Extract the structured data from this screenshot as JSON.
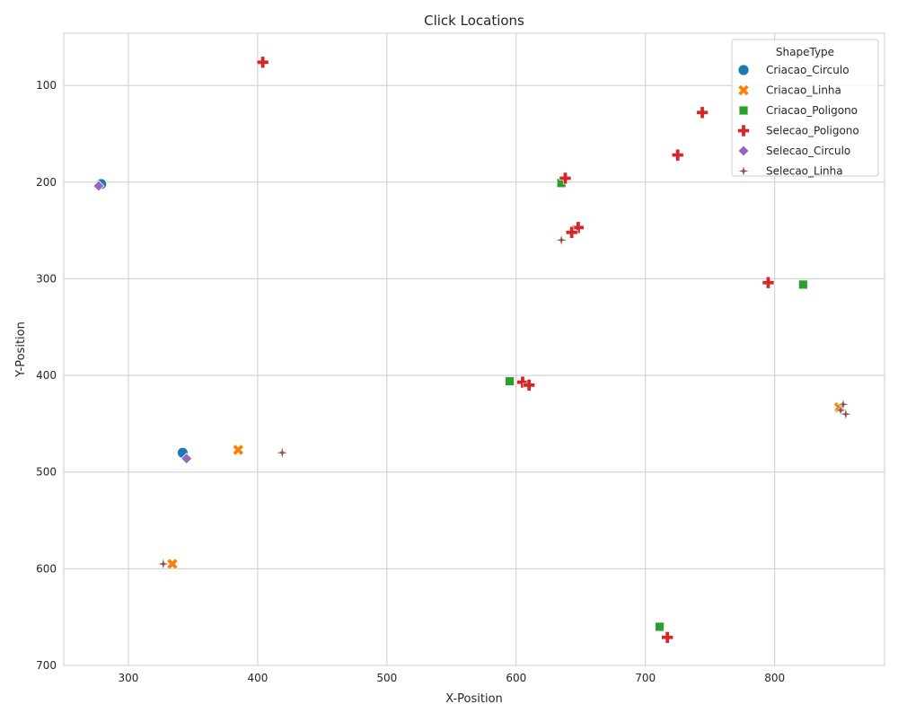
{
  "chart_data": {
    "type": "scatter",
    "title": "Click Locations",
    "xlabel": "X-Position",
    "ylabel": "Y-Position",
    "xlim": [
      250,
      885
    ],
    "ylim": [
      700,
      46
    ],
    "y_inverted": true,
    "grid": true,
    "x_ticks": [
      300,
      400,
      500,
      600,
      700,
      800
    ],
    "y_ticks": [
      100,
      200,
      300,
      400,
      500,
      600,
      700
    ],
    "legend": {
      "title": "ShapeType",
      "placement": "top-right"
    },
    "series": [
      {
        "name": "Criacao_Circulo",
        "marker": "circle",
        "color": "#1f77b4",
        "points": [
          [
            279,
            202
          ],
          [
            342,
            480
          ]
        ]
      },
      {
        "name": "Criacao_Linha",
        "marker": "x",
        "color": "#ff7f0e",
        "points": [
          [
            385,
            477
          ],
          [
            334,
            595
          ],
          [
            850,
            433
          ]
        ]
      },
      {
        "name": "Criacao_Poligono",
        "marker": "square",
        "color": "#2ca02c",
        "points": [
          [
            635,
            201
          ],
          [
            822,
            306
          ],
          [
            595,
            406
          ],
          [
            711,
            660
          ]
        ]
      },
      {
        "name": "Selecao_Poligono",
        "marker": "plus",
        "color": "#d62728",
        "points": [
          [
            404,
            76
          ],
          [
            744,
            128
          ],
          [
            725,
            172
          ],
          [
            638,
            196
          ],
          [
            648,
            247
          ],
          [
            643,
            252
          ],
          [
            795,
            304
          ],
          [
            605,
            407
          ],
          [
            610,
            410
          ],
          [
            717,
            671
          ]
        ]
      },
      {
        "name": "Selecao_Circulo",
        "marker": "diamond",
        "color": "#9467bd",
        "points": [
          [
            277,
            204
          ],
          [
            345,
            486
          ]
        ]
      },
      {
        "name": "Selecao_Linha",
        "marker": "star",
        "color": "#8c564b",
        "points": [
          [
            635,
            260
          ],
          [
            853,
            430
          ],
          [
            851,
            436
          ],
          [
            855,
            440
          ],
          [
            419,
            480
          ],
          [
            327,
            595
          ]
        ]
      }
    ]
  }
}
